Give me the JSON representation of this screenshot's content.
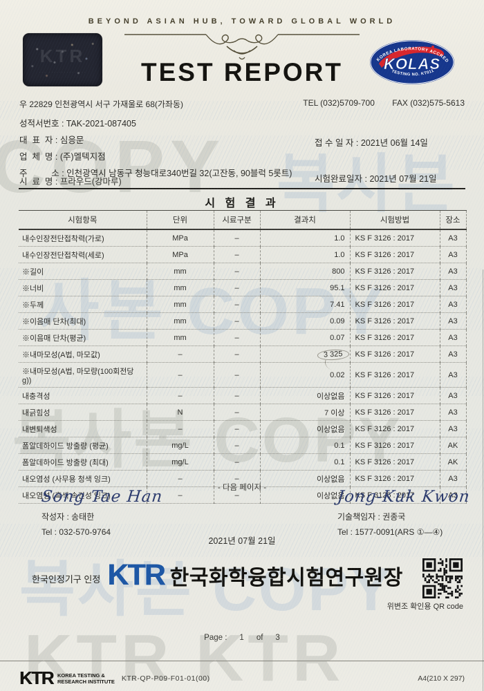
{
  "header": {
    "tagline": "BEYOND ASIAN HUB, TOWARD GLOBAL WORLD",
    "title": "TEST REPORT",
    "kolas": {
      "top_arc": "KOREA LABORATORY ACCREDITATION SCHEME",
      "name": "KOLAS",
      "bottom_arc": "TESTING NO. KT011"
    },
    "address": "우 22829 인천광역시 서구 가재울로 68(가좌동)",
    "tel": "TEL (032)5709-700",
    "fax": "FAX (032)575-5613"
  },
  "info": {
    "report_no": {
      "label": "성적서번호",
      "value": "TAK-2021-087405"
    },
    "representative": {
      "label": "대  표  자",
      "value": "심응문"
    },
    "company": {
      "label": "업  체  명",
      "value": "(주)멜텍지점"
    },
    "address": {
      "label": "주          소",
      "value": "인천광역시 남동구 청능대로340번길 32(고잔동, 90블럭 5롯트)"
    },
    "sample": {
      "label": "시  료  명",
      "value": "프라우드(강마루)"
    },
    "received": {
      "label": "접 수 일 자",
      "value": "2021년 06월 14일"
    },
    "completed": {
      "label": "시험완료일자",
      "value": "2021년 07월 21일"
    }
  },
  "results": {
    "section_title": "시 험 결 과",
    "columns": [
      "시험항목",
      "단위",
      "시료구분",
      "결과치",
      "시험방법",
      "장소"
    ],
    "rows": [
      {
        "item": "내수인장전단접착력(가로)",
        "unit": "MPa",
        "division": "–",
        "result": "1.0",
        "method": "KS F 3126 : 2017",
        "place": "A3"
      },
      {
        "item": "내수인장전단접착력(세로)",
        "unit": "MPa",
        "division": "–",
        "result": "1.0",
        "method": "KS F 3126 : 2017",
        "place": "A3"
      },
      {
        "item": "※길이",
        "unit": "mm",
        "division": "–",
        "result": "800",
        "method": "KS F 3126 : 2017",
        "place": "A3"
      },
      {
        "item": "※너비",
        "unit": "mm",
        "division": "–",
        "result": "95.1",
        "method": "KS F 3126 : 2017",
        "place": "A3"
      },
      {
        "item": "※두께",
        "unit": "mm",
        "division": "–",
        "result": "7.41",
        "method": "KS F 3126 : 2017",
        "place": "A3"
      },
      {
        "item": "※이음매 단차(최대)",
        "unit": "mm",
        "division": "–",
        "result": "0.09",
        "method": "KS F 3126 : 2017",
        "place": "A3"
      },
      {
        "item": "※이음매 단차(평균)",
        "unit": "mm",
        "division": "–",
        "result": "0.07",
        "method": "KS F 3126 : 2017",
        "place": "A3"
      },
      {
        "item": "※내마모성(A법, 마모값)",
        "unit": "–",
        "division": "–",
        "result": "3 325",
        "result_circled": true,
        "method": "KS F 3126 : 2017",
        "place": "A3"
      },
      {
        "item": "※내마모성(A법, 마모량(100회전당 g))",
        "unit": "–",
        "division": "–",
        "result": "0.02",
        "method": "KS F 3126 : 2017",
        "place": "A3"
      },
      {
        "item": "내충격성",
        "unit": "–",
        "division": "–",
        "result": "이상없음",
        "method": "KS F 3126 : 2017",
        "place": "A3"
      },
      {
        "item": "내긁힘성",
        "unit": "N",
        "division": "–",
        "result": "7 이상",
        "method": "KS F 3126 : 2017",
        "place": "A3"
      },
      {
        "item": "내변퇴색성",
        "unit": "–",
        "division": "–",
        "result": "이상없음",
        "method": "KS F 3126 : 2017",
        "place": "A3"
      },
      {
        "item": "폼알데하이드 방출량 (평균)",
        "unit": "mg/L",
        "division": "–",
        "result": "0.1",
        "method": "KS F 3126 : 2017",
        "place": "AK"
      },
      {
        "item": "폼알데하이드 방출량 (최대)",
        "unit": "mg/L",
        "division": "–",
        "result": "0.1",
        "method": "KS F 3126 : 2017",
        "place": "AK"
      },
      {
        "item": "내오염성 (사무용 청색 잉크)",
        "unit": "–",
        "division": "–",
        "result": "이상없음",
        "method": "KS F 3126 : 2017",
        "place": "A3"
      },
      {
        "item": "내오염성 (흑색 속건성 잉크)",
        "unit": "–",
        "division": "–",
        "result": "이상없음",
        "method": "KS F 3126 : 2017",
        "place": "A3"
      }
    ]
  },
  "next_page_note": "- 다음 페이지 -",
  "signers": {
    "writer": {
      "signature": "Song Tae Han",
      "title_name": "작성자 : 송태한",
      "tel": "Tel : 032-570-9764"
    },
    "tech": {
      "signature": "Jong-Kuk Kwon",
      "title_name": "기술책임자 : 권종국",
      "tel": "Tel : 1577-0091(ARS ①—④)"
    }
  },
  "report_date": "2021년 07월 21일",
  "issuer": {
    "accreditation": "한국인정기구 인정",
    "logo": "KTR",
    "org_title": "한국화학융합시험연구원장",
    "qr_caption": "위변조 확인용  QR code"
  },
  "page_indicator": {
    "label": "Page :",
    "current": "1",
    "of": "of",
    "total": "3"
  },
  "footer": {
    "logo": "KTR",
    "org_line1": "KOREA TESTING &",
    "org_line2": "RESEARCH INSTITUTE",
    "doc_code": "KTR-QP-P09-F01-01(00)",
    "paper_size": "A4(210 X 297)"
  },
  "watermarks": {
    "wm1": "COPY",
    "wm2": "복사본",
    "wm3": "사본 COPY",
    "wm4": "복사본 COPY",
    "wm5": "복사본 COPY",
    "wm6": "KTR   KTR"
  },
  "colors": {
    "ktr_blue": "#1d57a5",
    "kolas_blue": "#16368c",
    "kolas_red": "#d8262c",
    "signature_ink": "#2c3b6d"
  }
}
